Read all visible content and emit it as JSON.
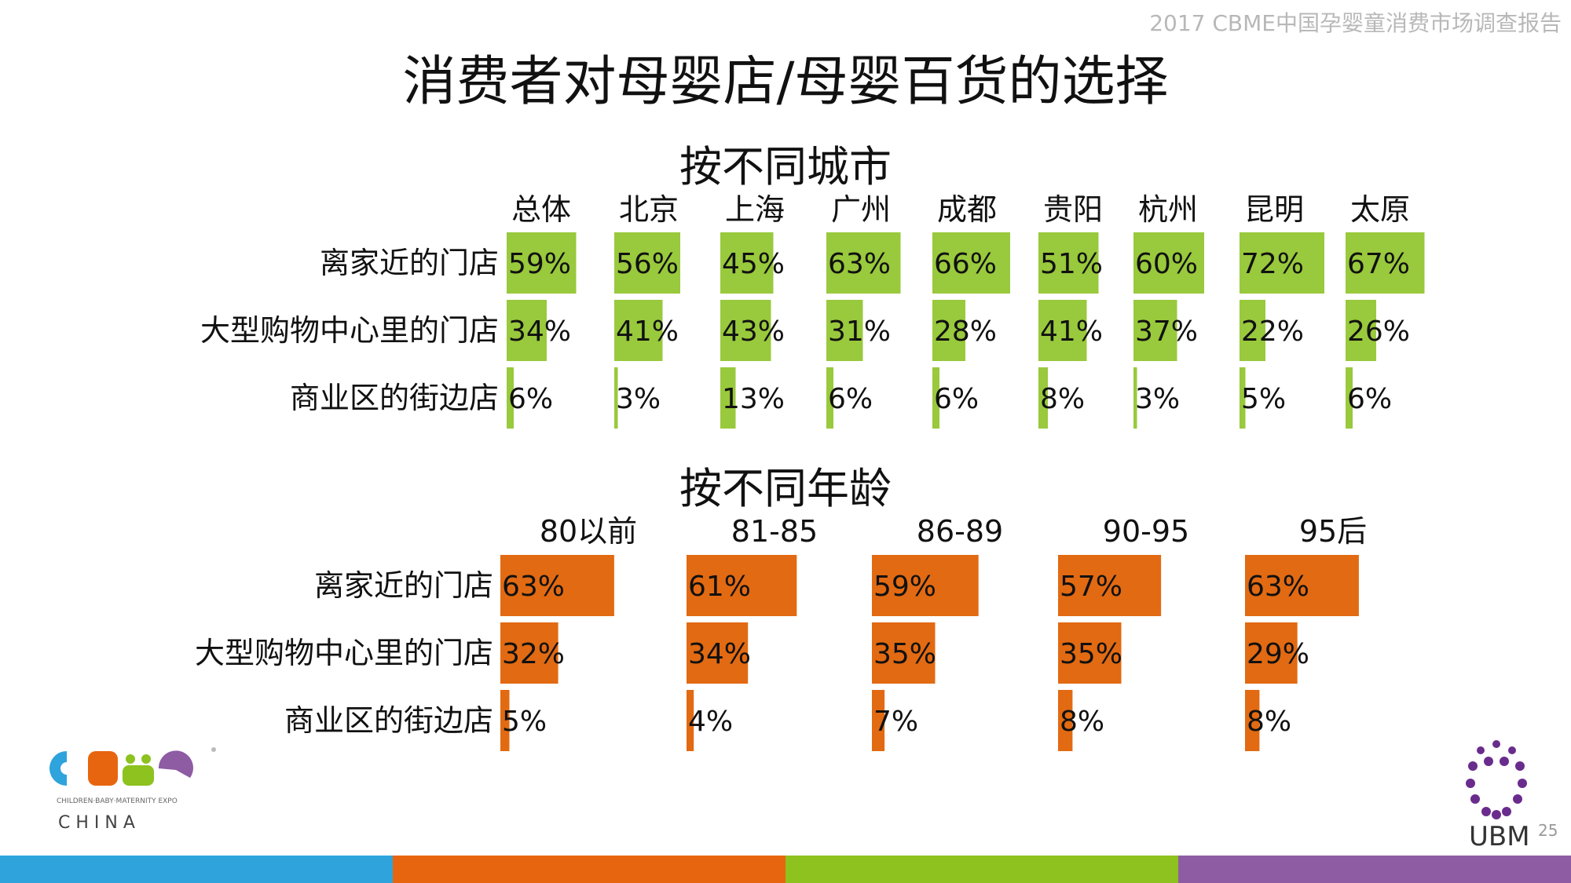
{
  "header": {
    "report_name": "2017 CBME中国孕婴童消费市场调查报告",
    "page_number": "25"
  },
  "title": "消费者对母婴店/母婴百货的选择",
  "logos": {
    "cbme": {
      "name": "CBME",
      "tagline": "CHILDREN·BABY·MATERNITY EXPO",
      "sub": "C H I N A"
    },
    "ubm": {
      "name": "UBM"
    }
  },
  "footer_colors": [
    "#2ea3dc",
    "#e8650f",
    "#8dc21f",
    "#8e5ca3"
  ],
  "chart_data": [
    {
      "type": "bar",
      "orientation": "horizontal-small-multiples",
      "title": "按不同城市",
      "categories": [
        "离家近的门店",
        "大型购物中心里的门店",
        "商业区的街边店"
      ],
      "color": "#99c93c",
      "xlim": [
        0,
        100
      ],
      "series": [
        {
          "name": "总体",
          "values": [
            59,
            34,
            6
          ],
          "labels": [
            "59%",
            "34%",
            "6%"
          ]
        },
        {
          "name": "北京",
          "values": [
            56,
            41,
            3
          ],
          "labels": [
            "56%",
            "41%",
            "3%"
          ]
        },
        {
          "name": "上海",
          "values": [
            45,
            43,
            13
          ],
          "labels": [
            "45%",
            "43%",
            "13%"
          ]
        },
        {
          "name": "广州",
          "values": [
            63,
            31,
            6
          ],
          "labels": [
            "63%",
            "31%",
            "6%"
          ]
        },
        {
          "name": "成都",
          "values": [
            66,
            28,
            6
          ],
          "labels": [
            "66%",
            "28%",
            "6%"
          ]
        },
        {
          "name": "贵阳",
          "values": [
            51,
            41,
            8
          ],
          "labels": [
            "51%",
            "41%",
            "8%"
          ]
        },
        {
          "name": "杭州",
          "values": [
            60,
            37,
            3
          ],
          "labels": [
            "60%",
            "37%",
            "3%"
          ]
        },
        {
          "name": "昆明",
          "values": [
            72,
            22,
            5
          ],
          "labels": [
            "72%",
            "22%",
            "5%"
          ]
        },
        {
          "name": "太原",
          "values": [
            67,
            26,
            6
          ],
          "labels": [
            "67%",
            "26%",
            "6%"
          ]
        }
      ]
    },
    {
      "type": "bar",
      "orientation": "horizontal-small-multiples",
      "title": "按不同年龄",
      "categories": [
        "离家近的门店",
        "大型购物中心里的门店",
        "商业区的街边店"
      ],
      "color": "#e26a12",
      "xlim": [
        0,
        100
      ],
      "series": [
        {
          "name": "80以前",
          "values": [
            63,
            32,
            5
          ],
          "labels": [
            "63%",
            "32%",
            "5%"
          ]
        },
        {
          "name": "81-85",
          "values": [
            61,
            34,
            4
          ],
          "labels": [
            "61%",
            "34%",
            "4%"
          ]
        },
        {
          "name": "86-89",
          "values": [
            59,
            35,
            7
          ],
          "labels": [
            "59%",
            "35%",
            "7%"
          ]
        },
        {
          "name": "90-95",
          "values": [
            57,
            35,
            8
          ],
          "labels": [
            "57%",
            "35%",
            "8%"
          ]
        },
        {
          "name": "95后",
          "values": [
            63,
            29,
            8
          ],
          "labels": [
            "63%",
            "29%",
            "8%"
          ]
        }
      ]
    }
  ]
}
